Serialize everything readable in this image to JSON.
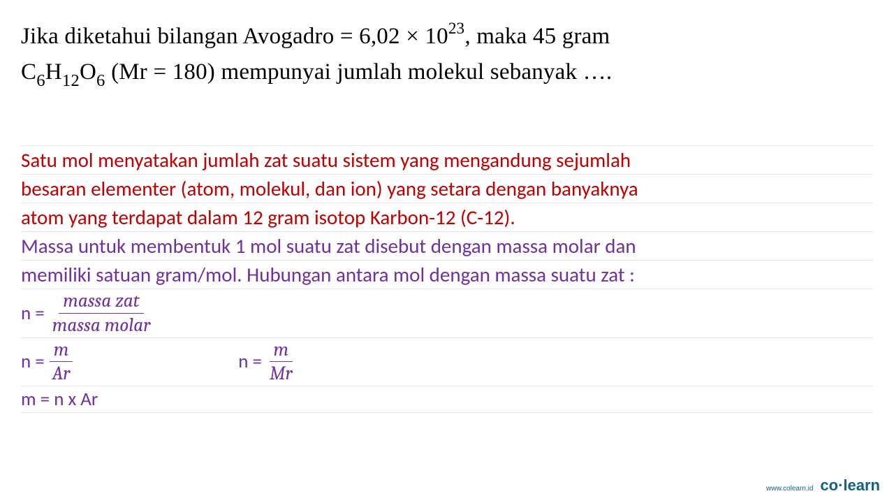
{
  "colors": {
    "text_black": "#000000",
    "text_red": "#c00000",
    "text_purple": "#7030a0",
    "brand_blue": "#156082",
    "line_grey": "#e6e6e6",
    "background": "#ffffff"
  },
  "typography": {
    "question_fontsize": 33,
    "body_fontsize": 29,
    "formula_fontsize": 27,
    "question_font": "Times New Roman",
    "body_font": "Calibri"
  },
  "question": {
    "line1_prefix": "Jika diketahui bilangan Avogadro = 6,02 × 10",
    "line1_exp": "23",
    "line1_suffix": ", maka 45 gram",
    "formula_c": "C",
    "formula_c_sub": "6",
    "formula_h": "H",
    "formula_h_sub": "12",
    "formula_o": "O",
    "formula_o_sub": "6",
    "line2_suffix": " (Mr = 180) mempunyai jumlah molekul sebanyak …."
  },
  "definition_red": {
    "line1": "Satu mol menyatakan jumlah zat suatu sistem yang mengandung sejumlah",
    "line2": "besaran elementer (atom, molekul, dan ion) yang setara dengan banyaknya",
    "line3": "atom yang terdapat dalam 12 gram isotop Karbon-12 (C-12)."
  },
  "definition_purple": {
    "line1": "Massa untuk membentuk 1 mol suatu zat disebut dengan massa molar dan",
    "line2": "memiliki satuan gram/mol. Hubungan antara mol dengan massa suatu zat :"
  },
  "formulas": {
    "n_eq": "n = ",
    "massa_zat": "massa zat",
    "massa_molar": "massa molar",
    "m": "m",
    "Ar": "Ar",
    "Mr": "Mr",
    "m_eq_nAr": "m = n x Ar"
  },
  "footer": {
    "url": "www.colearn.id",
    "logo": "co·learn"
  }
}
